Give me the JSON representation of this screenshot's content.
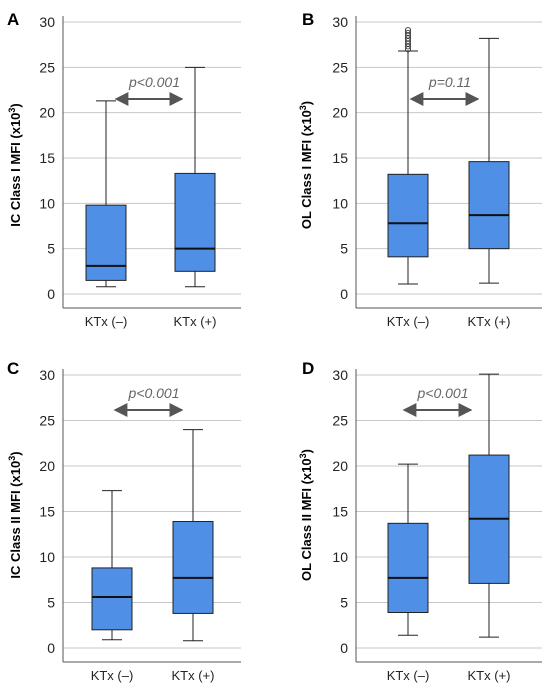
{
  "chart_data": [
    {
      "type": "box",
      "panel": "A",
      "ylabel_main": "IC Class I MFI (x10",
      "ylabel_sup": "3",
      "ylabel_end": ")",
      "categories": [
        "KTx (–)",
        "KTx (+)"
      ],
      "ylim": [
        0,
        30
      ],
      "yticks": [
        0,
        5,
        10,
        15,
        20,
        25,
        30
      ],
      "grid": true,
      "box_color": "#4f8fe6",
      "annotation": "p<0.001",
      "boxes": [
        {
          "min": 0.8,
          "q1": 1.5,
          "median": 3.1,
          "q3": 9.8,
          "max": 21.3,
          "outliers": []
        },
        {
          "min": 0.8,
          "q1": 2.5,
          "median": 5.0,
          "q3": 13.3,
          "max": 25.0,
          "outliers": []
        }
      ]
    },
    {
      "type": "box",
      "panel": "B",
      "ylabel_main": "OL Class I MFI (x10",
      "ylabel_sup": "3",
      "ylabel_end": ")",
      "categories": [
        "KTx (–)",
        "KTx (+)"
      ],
      "ylim": [
        0,
        30
      ],
      "yticks": [
        0,
        5,
        10,
        15,
        20,
        25,
        30
      ],
      "grid": true,
      "box_color": "#4f8fe6",
      "annotation": "p=0.11",
      "boxes": [
        {
          "min": 1.1,
          "q1": 4.1,
          "median": 7.8,
          "q3": 13.2,
          "max": 26.8,
          "outliers": [
            27.0,
            27.3,
            27.6,
            27.9,
            28.2,
            28.5,
            28.8,
            29.1
          ]
        },
        {
          "min": 1.2,
          "q1": 5.0,
          "median": 8.7,
          "q3": 14.6,
          "max": 28.2,
          "outliers": []
        }
      ]
    },
    {
      "type": "box",
      "panel": "C",
      "ylabel_main": "IC Class II MFI (x10",
      "ylabel_sup": "3",
      "ylabel_end": ")",
      "categories": [
        "KTx (–)",
        "KTx (+)"
      ],
      "ylim": [
        0,
        30
      ],
      "yticks": [
        0,
        5,
        10,
        15,
        20,
        25,
        30
      ],
      "grid": true,
      "box_color": "#4f8fe6",
      "annotation": "p<0.001",
      "boxes": [
        {
          "min": 0.9,
          "q1": 2.0,
          "median": 5.6,
          "q3": 8.8,
          "max": 17.3,
          "outliers": []
        },
        {
          "min": 0.8,
          "q1": 3.8,
          "median": 7.7,
          "q3": 13.9,
          "max": 24.0,
          "outliers": []
        }
      ]
    },
    {
      "type": "box",
      "panel": "D",
      "ylabel_main": "OL Class II MFI (x10",
      "ylabel_sup": "3",
      "ylabel_end": ")",
      "categories": [
        "KTx (–)",
        "KTx (+)"
      ],
      "ylim": [
        0,
        30
      ],
      "yticks": [
        0,
        5,
        10,
        15,
        20,
        25,
        30
      ],
      "grid": true,
      "box_color": "#4f8fe6",
      "annotation": "p<0.001",
      "boxes": [
        {
          "min": 1.4,
          "q1": 3.9,
          "median": 7.7,
          "q3": 13.7,
          "max": 20.2,
          "outliers": []
        },
        {
          "min": 1.2,
          "q1": 7.1,
          "median": 14.2,
          "q3": 21.2,
          "max": 30.1,
          "outliers": []
        }
      ]
    }
  ]
}
